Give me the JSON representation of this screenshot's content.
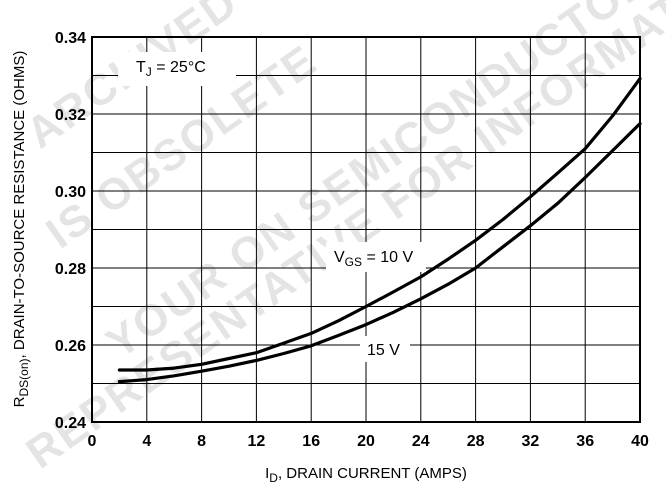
{
  "chart_data": {
    "type": "line",
    "title": "",
    "xlabel": {
      "main": "I",
      "sub": "D",
      "rest": ", DRAIN CURRENT (AMPS)"
    },
    "ylabel": {
      "main": "R",
      "sub": "DS(on)",
      "rest": ", DRAIN-TO-SOURCE RESISTANCE (OHMS)"
    },
    "xlim": [
      0,
      40
    ],
    "ylim": [
      0.24,
      0.34
    ],
    "x_ticks": [
      "0",
      "4",
      "8",
      "12",
      "16",
      "20",
      "24",
      "28",
      "32",
      "36",
      "40"
    ],
    "y_ticks": [
      "0.24",
      "0.26",
      "0.28",
      "0.30",
      "0.32",
      "0.34"
    ],
    "grid": true,
    "series": [
      {
        "name": "V_GS = 10 V",
        "x": [
          2,
          4,
          6,
          8,
          10,
          12,
          14,
          16,
          18,
          20,
          22,
          24,
          26,
          28,
          30,
          32,
          34,
          36,
          38,
          40
        ],
        "y": [
          0.2535,
          0.2535,
          0.254,
          0.255,
          0.2565,
          0.258,
          0.2605,
          0.263,
          0.2663,
          0.27,
          0.2738,
          0.2777,
          0.2823,
          0.2872,
          0.2926,
          0.2985,
          0.3047,
          0.311,
          0.3195,
          0.3292
        ]
      },
      {
        "name": "15 V",
        "x": [
          2,
          4,
          6,
          8,
          10,
          12,
          14,
          16,
          18,
          20,
          22,
          24,
          26,
          28,
          30,
          32,
          34,
          36,
          38,
          40
        ],
        "y": [
          0.2505,
          0.251,
          0.252,
          0.2532,
          0.2545,
          0.256,
          0.2578,
          0.2598,
          0.2625,
          0.2653,
          0.2685,
          0.272,
          0.2758,
          0.28,
          0.2855,
          0.291,
          0.2968,
          0.3035,
          0.3105,
          0.3175
        ]
      }
    ],
    "annotations": {
      "tj": {
        "main": "T",
        "sub": "J",
        "rest": " =  25°C"
      },
      "vgs10": {
        "main": "V",
        "sub": "GS",
        "rest": " = 10 V"
      },
      "vgs15": {
        "text": "15 V"
      }
    }
  },
  "watermark": [
    "ARCHIVED BY FREESCALE SEMICONDUCTOR, INC.",
    "IS OBSOLETE",
    "YOUR ON SEMICONDUCTOR",
    "REPRESENTATIVE FOR INFORMATION"
  ],
  "colors": {
    "line": "#000000",
    "grid": "#000000",
    "background": "#ffffff",
    "watermark": "#000000"
  }
}
